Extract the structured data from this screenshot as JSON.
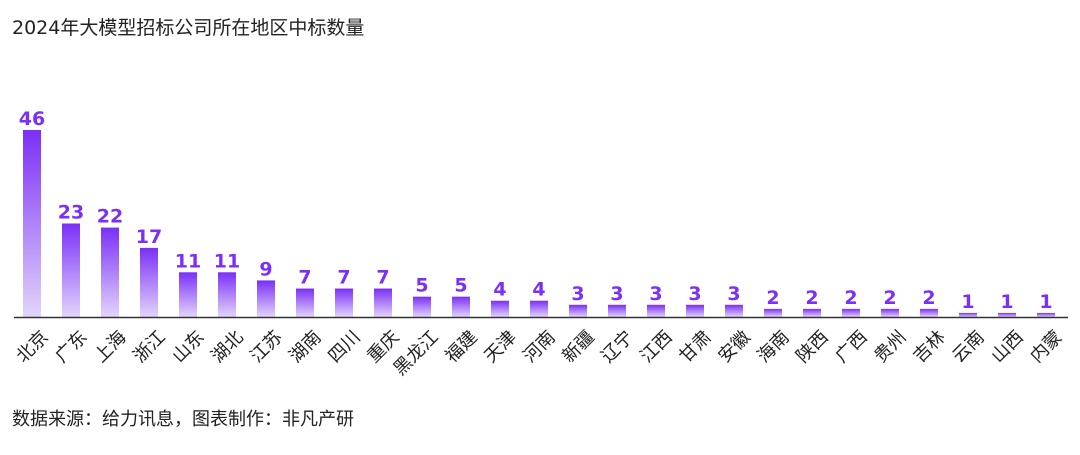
{
  "title": "2024年大模型招标公司所在地区中标数量",
  "source": "数据来源：给力讯息，图表制作：非凡产研",
  "colors": {
    "bar_top": "#7b2ff7",
    "bar_bottom": "#e2d4fb",
    "value_label": "#7b2ff7",
    "axis": "#333333",
    "text": "#222222"
  },
  "chart_data": {
    "type": "bar",
    "title": "2024年大模型招标公司所在地区中标数量",
    "xlabel": "",
    "ylabel": "",
    "ylim": [
      0,
      46
    ],
    "grid": false,
    "categories": [
      "北京",
      "广东",
      "上海",
      "浙江",
      "山东",
      "湖北",
      "江苏",
      "湖南",
      "四川",
      "重庆",
      "黑龙江",
      "福建",
      "天津",
      "河南",
      "新疆",
      "辽宁",
      "江西",
      "甘肃",
      "安徽",
      "海南",
      "陕西",
      "广西",
      "贵州",
      "吉林",
      "云南",
      "山西",
      "内蒙"
    ],
    "values": [
      46,
      23,
      22,
      17,
      11,
      11,
      9,
      7,
      7,
      7,
      5,
      5,
      4,
      4,
      3,
      3,
      3,
      3,
      3,
      2,
      2,
      2,
      2,
      2,
      1,
      1,
      1
    ]
  }
}
